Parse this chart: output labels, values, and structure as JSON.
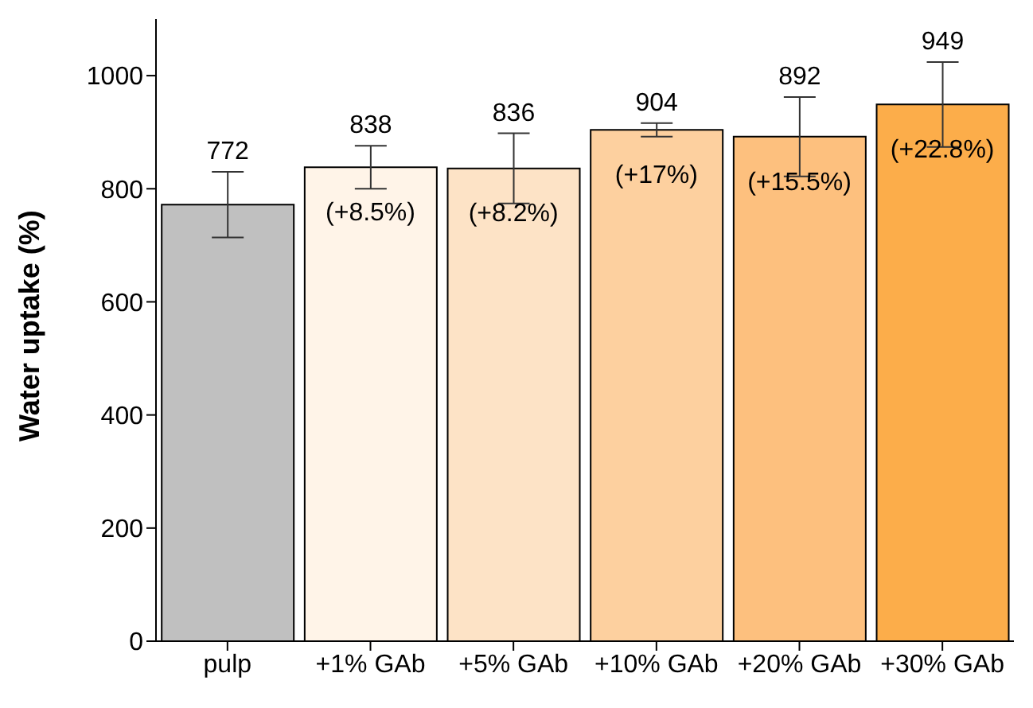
{
  "chart_data": {
    "type": "bar",
    "ylabel": "Water uptake (%)",
    "categories": [
      "pulp",
      "+1% GAb",
      "+5% GAb",
      "+10% GAb",
      "+20% GAb",
      "+30% GAb"
    ],
    "values": [
      772,
      838,
      836,
      904,
      892,
      949
    ],
    "colors": [
      "#c0c0c0",
      "#fff4e8",
      "#fde3c6",
      "#fdd09f",
      "#fdc07e",
      "#fcad4a"
    ],
    "errors": [
      58,
      38,
      62,
      12,
      70,
      75
    ],
    "ylim": [
      0,
      1100
    ],
    "yticks": [
      0,
      200,
      400,
      600,
      800,
      1000
    ],
    "grid": false,
    "data_labels": true,
    "annotations": [
      "(+8.5%)",
      "(+8.2%)",
      "(+17%)",
      "(+15.5%)",
      "(+22.8%)"
    ]
  }
}
